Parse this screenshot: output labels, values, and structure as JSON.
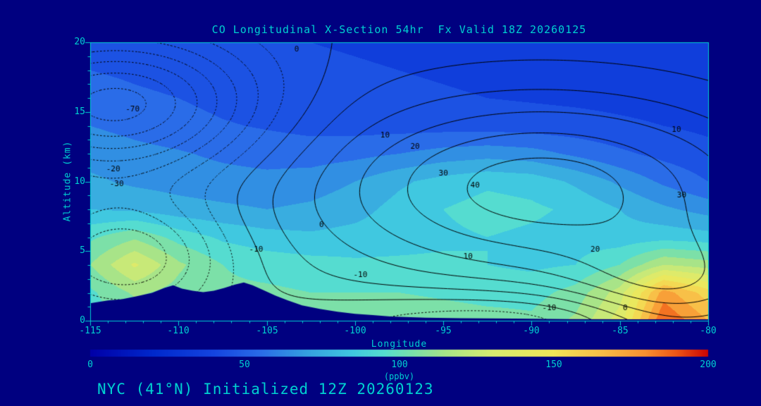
{
  "colors": {
    "background": "#000080",
    "foreground": "#00d0d0",
    "contour": "#000000"
  },
  "footer": "NYC (41°N) Initialized 12Z 20260123",
  "chart_data": {
    "type": "heatmap",
    "title": "CO Longitudinal X-Section 54hr  Fx Valid 18Z 20260125",
    "xlabel": "Longitude",
    "ylabel": "Altitude (km)",
    "colorbar_label": "(ppbv)",
    "xlim": [
      -115,
      -80
    ],
    "ylim": [
      0,
      20
    ],
    "x_ticks": [
      "-115",
      "-110",
      "-105",
      "-100",
      "-95",
      "-90",
      "-85",
      "-80"
    ],
    "x_tick_values": [
      -115,
      -110,
      -105,
      -100,
      -95,
      -90,
      -85,
      -80
    ],
    "y_ticks": [
      "0",
      "5",
      "10",
      "15",
      "20"
    ],
    "y_tick_values": [
      0,
      5,
      10,
      15,
      20
    ],
    "colorbar": {
      "min": 0,
      "max": 200,
      "tick_labels": [
        "0",
        "50",
        "100",
        "150",
        "200"
      ],
      "tick_values": [
        0,
        50,
        100,
        150,
        200
      ]
    },
    "band_interval": 10,
    "colormap": [
      [
        0,
        "#0000a8"
      ],
      [
        20,
        "#0028cc"
      ],
      [
        40,
        "#1545e0"
      ],
      [
        55,
        "#2a6ce8"
      ],
      [
        70,
        "#35a0e0"
      ],
      [
        85,
        "#40c8e0"
      ],
      [
        95,
        "#55dcd0"
      ],
      [
        105,
        "#7ce0a8"
      ],
      [
        115,
        "#a8e488"
      ],
      [
        130,
        "#d8ec70"
      ],
      [
        150,
        "#f0e658"
      ],
      [
        165,
        "#f8c048"
      ],
      [
        180,
        "#f89030"
      ],
      [
        190,
        "#ee5515"
      ],
      [
        200,
        "#cc0505"
      ]
    ],
    "grid": {
      "lons": [
        -115,
        -112.5,
        -110,
        -107.5,
        -105,
        -102.5,
        -100,
        -97.5,
        -95,
        -92.5,
        -90,
        -87.5,
        -85,
        -82.5,
        -80
      ],
      "alts": [
        0,
        2,
        4,
        6,
        8,
        10,
        12,
        14,
        16,
        18,
        20
      ],
      "values_ppbv": [
        [
          95,
          100,
          102,
          104,
          106,
          106,
          106,
          108,
          106,
          104,
          102,
          112,
          135,
          190,
          170
        ],
        [
          98,
          112,
          106,
          102,
          102,
          100,
          100,
          100,
          98,
          96,
          96,
          104,
          125,
          175,
          155
        ],
        [
          110,
          132,
          112,
          100,
          96,
          94,
          92,
          92,
          92,
          90,
          88,
          90,
          100,
          120,
          115
        ],
        [
          98,
          108,
          96,
          88,
          84,
          82,
          84,
          86,
          88,
          90,
          88,
          86,
          84,
          86,
          84
        ],
        [
          80,
          78,
          74,
          72,
          70,
          72,
          76,
          84,
          90,
          94,
          92,
          88,
          80,
          72,
          66
        ],
        [
          72,
          68,
          66,
          64,
          63,
          65,
          70,
          78,
          84,
          88,
          86,
          78,
          68,
          58,
          50
        ],
        [
          66,
          63,
          61,
          58,
          56,
          55,
          57,
          60,
          64,
          66,
          64,
          58,
          52,
          47,
          43
        ],
        [
          60,
          57,
          54,
          51,
          49,
          47,
          46,
          46,
          46,
          46,
          45,
          44,
          42,
          40,
          38
        ],
        [
          55,
          52,
          50,
          47,
          45,
          44,
          42,
          42,
          41,
          40,
          39,
          38,
          37,
          36,
          35
        ],
        [
          50,
          48,
          46,
          44,
          43,
          42,
          41,
          40,
          39,
          38,
          37,
          36,
          35,
          34,
          33
        ],
        [
          47,
          45,
          44,
          42,
          41,
          40,
          39,
          38,
          37,
          36,
          35,
          34,
          33,
          32,
          31
        ]
      ]
    },
    "terrain_km": [
      [
        -115,
        1.25
      ],
      [
        -114,
        1.45
      ],
      [
        -113.2,
        1.55
      ],
      [
        -112.4,
        1.75
      ],
      [
        -111.5,
        2.0
      ],
      [
        -110.8,
        2.35
      ],
      [
        -110.3,
        2.55
      ],
      [
        -109.8,
        2.3
      ],
      [
        -109.2,
        2.15
      ],
      [
        -108.6,
        2.05
      ],
      [
        -108,
        2.15
      ],
      [
        -107.4,
        2.35
      ],
      [
        -106.8,
        2.6
      ],
      [
        -106.3,
        2.75
      ],
      [
        -105.8,
        2.55
      ],
      [
        -105.2,
        2.2
      ],
      [
        -104.5,
        1.8
      ],
      [
        -103.8,
        1.45
      ],
      [
        -103,
        1.1
      ],
      [
        -102,
        0.85
      ],
      [
        -101,
        0.65
      ],
      [
        -100,
        0.5
      ],
      [
        -99,
        0.4
      ],
      [
        -98,
        0.3
      ],
      [
        -96,
        0.22
      ],
      [
        -94,
        0.18
      ],
      [
        -91,
        0.15
      ],
      [
        -88,
        0.12
      ],
      [
        -84,
        0.1
      ],
      [
        -80,
        0.1
      ]
    ],
    "contour_overlay": {
      "levels": [
        -70,
        -60,
        -50,
        -40,
        -30,
        -20,
        -10,
        0,
        10,
        20,
        30,
        40,
        50
      ],
      "negative_style": "dotted",
      "positive_style": "solid",
      "gaussians": [
        {
          "amp": -75,
          "lon0": -113.5,
          "slon": 5.5,
          "alt0": 15.5,
          "salt": 3.5
        },
        {
          "amp": -50,
          "lon0": -113.0,
          "slon": 4.0,
          "alt0": 4.5,
          "salt": 3.0
        },
        {
          "amp": 55,
          "lon0": -89.5,
          "slon": 9.5,
          "alt0": 9.5,
          "salt": 5.0
        },
        {
          "amp": 30,
          "lon0": -82.0,
          "slon": 4.0,
          "alt0": 2.0,
          "salt": 3.0
        },
        {
          "amp": -25,
          "lon0": -91.0,
          "slon": 8.0,
          "alt0": 0.0,
          "salt": 1.5
        }
      ],
      "labels": [
        {
          "text": "-70",
          "lon": -112.6,
          "alt": 15.2
        },
        {
          "text": "-20",
          "lon": -113.7,
          "alt": 10.9
        },
        {
          "text": "-30",
          "lon": -113.5,
          "alt": 9.8
        },
        {
          "text": "0",
          "lon": -103.3,
          "alt": 19.5
        },
        {
          "text": "-10",
          "lon": -105.6,
          "alt": 5.1
        },
        {
          "text": "-10",
          "lon": -99.7,
          "alt": 3.3
        },
        {
          "text": "0",
          "lon": -101.9,
          "alt": 6.9
        },
        {
          "text": "10",
          "lon": -98.3,
          "alt": 13.3
        },
        {
          "text": "20",
          "lon": -96.6,
          "alt": 12.5
        },
        {
          "text": "30",
          "lon": -95.0,
          "alt": 10.6
        },
        {
          "text": "40",
          "lon": -93.2,
          "alt": 9.7
        },
        {
          "text": "10",
          "lon": -93.6,
          "alt": 4.6
        },
        {
          "text": "20",
          "lon": -86.4,
          "alt": 5.1
        },
        {
          "text": "30",
          "lon": -81.5,
          "alt": 9.0
        },
        {
          "text": "10",
          "lon": -81.8,
          "alt": 13.7
        },
        {
          "text": "-10",
          "lon": -89.0,
          "alt": 0.9
        },
        {
          "text": "0",
          "lon": -84.7,
          "alt": 0.9
        }
      ]
    }
  }
}
